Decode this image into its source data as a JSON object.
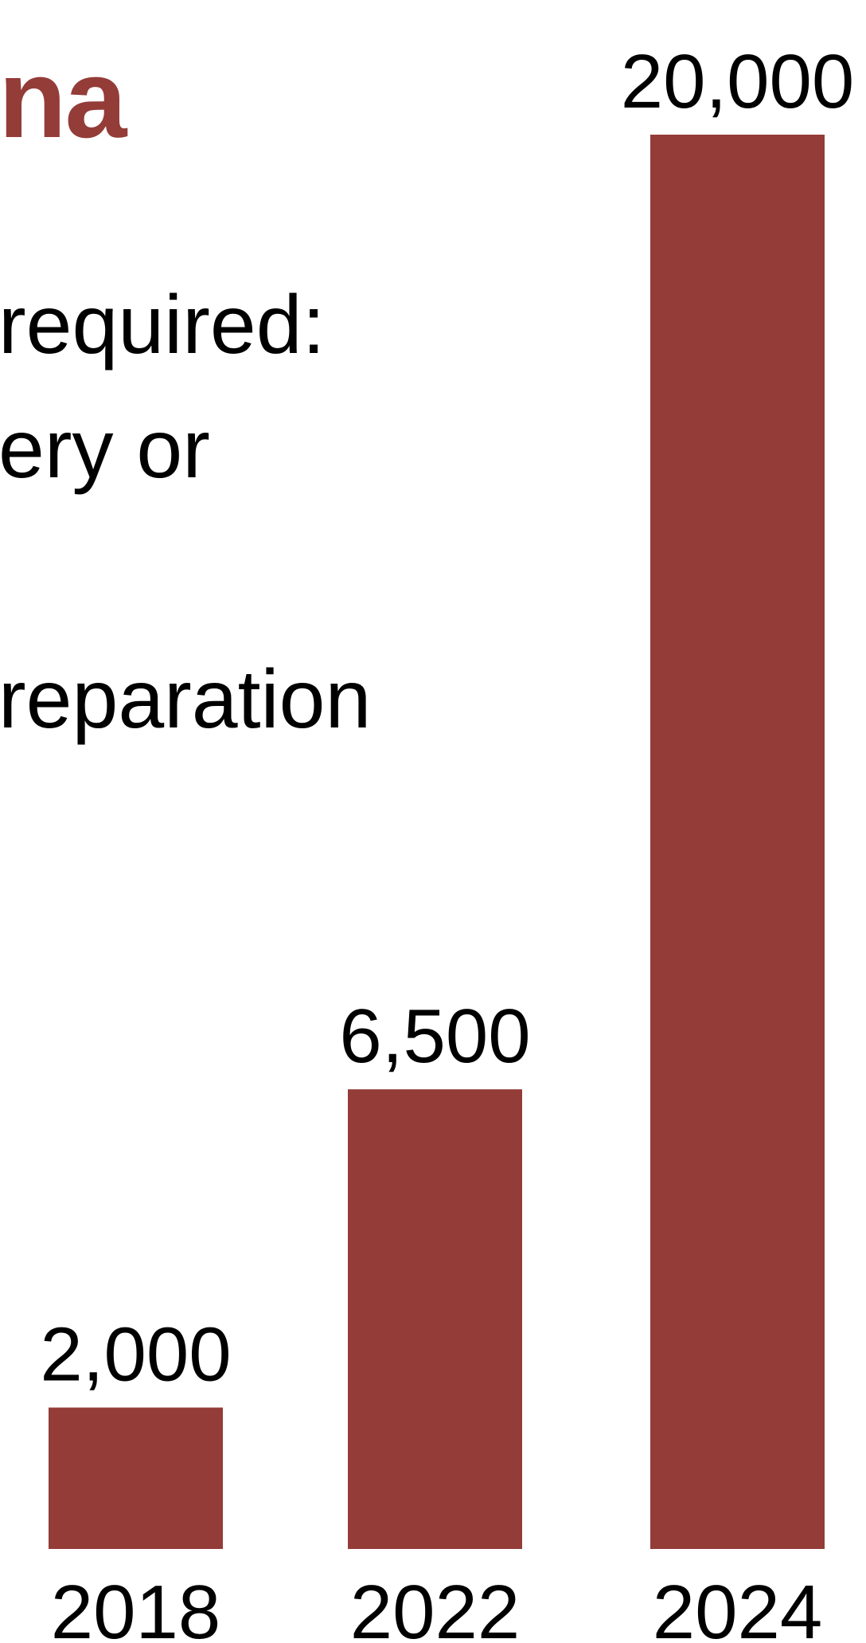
{
  "slide": {
    "title_fragment": "na",
    "text_lines": [
      "required:",
      "ery or",
      "reparation"
    ]
  },
  "colors": {
    "bar": "#943c38",
    "title": "#943c38",
    "text": "#000000",
    "background": "#ffffff"
  },
  "chart_data": {
    "type": "bar",
    "title": "",
    "xlabel": "",
    "ylabel": "",
    "categories": [
      "2018",
      "2022",
      "2024"
    ],
    "values": [
      2000,
      6500,
      20000
    ],
    "value_labels": [
      "2,000",
      "6,500",
      "20,000"
    ],
    "ylim": [
      0,
      20000
    ],
    "grid": false,
    "legend": "none"
  }
}
